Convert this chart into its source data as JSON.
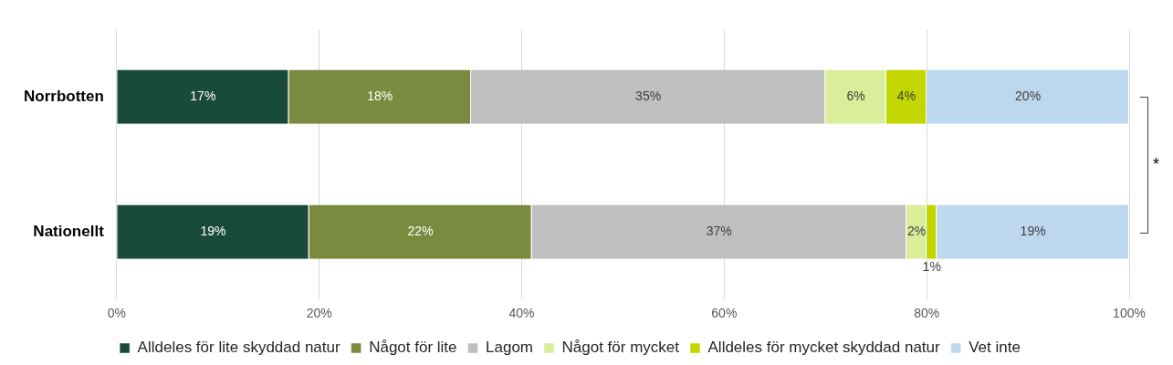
{
  "chart_data": {
    "type": "bar",
    "orientation": "horizontal",
    "stacked": true,
    "categories": [
      "Norrbotten",
      "Nationellt"
    ],
    "series": [
      {
        "name": "Alldeles för lite skyddad natur",
        "color": "#1a4a38",
        "values": [
          17,
          19
        ],
        "value_labels": [
          "17%",
          "19%"
        ]
      },
      {
        "name": "Något för lite",
        "color": "#7a8a3e",
        "values": [
          18,
          22
        ],
        "value_labels": [
          "18%",
          "22%"
        ]
      },
      {
        "name": "Lagom",
        "color": "#bfbfbf",
        "values": [
          35,
          37
        ],
        "value_labels": [
          "35%",
          "37%"
        ]
      },
      {
        "name": "Något för mycket",
        "color": "#d9ed9b",
        "values": [
          6,
          2
        ],
        "value_labels": [
          "6%",
          "2%"
        ]
      },
      {
        "name": "Alldeles för mycket skyddad natur",
        "color": "#c3d600",
        "values": [
          4,
          1
        ],
        "value_labels": [
          "4%",
          "1%"
        ]
      },
      {
        "name": "Vet inte",
        "color": "#bdd7ee",
        "values": [
          20,
          19
        ],
        "value_labels": [
          "20%",
          "19%"
        ]
      }
    ],
    "xlim": [
      0,
      100
    ],
    "xticks": [
      {
        "value": 0,
        "label": "0%"
      },
      {
        "value": 20,
        "label": "20%"
      },
      {
        "value": 40,
        "label": "40%"
      },
      {
        "value": 60,
        "label": "60%"
      },
      {
        "value": 80,
        "label": "80%"
      },
      {
        "value": 100,
        "label": "100%"
      }
    ],
    "grid": "x",
    "legend": "bottom",
    "annotations": [
      "*"
    ]
  }
}
